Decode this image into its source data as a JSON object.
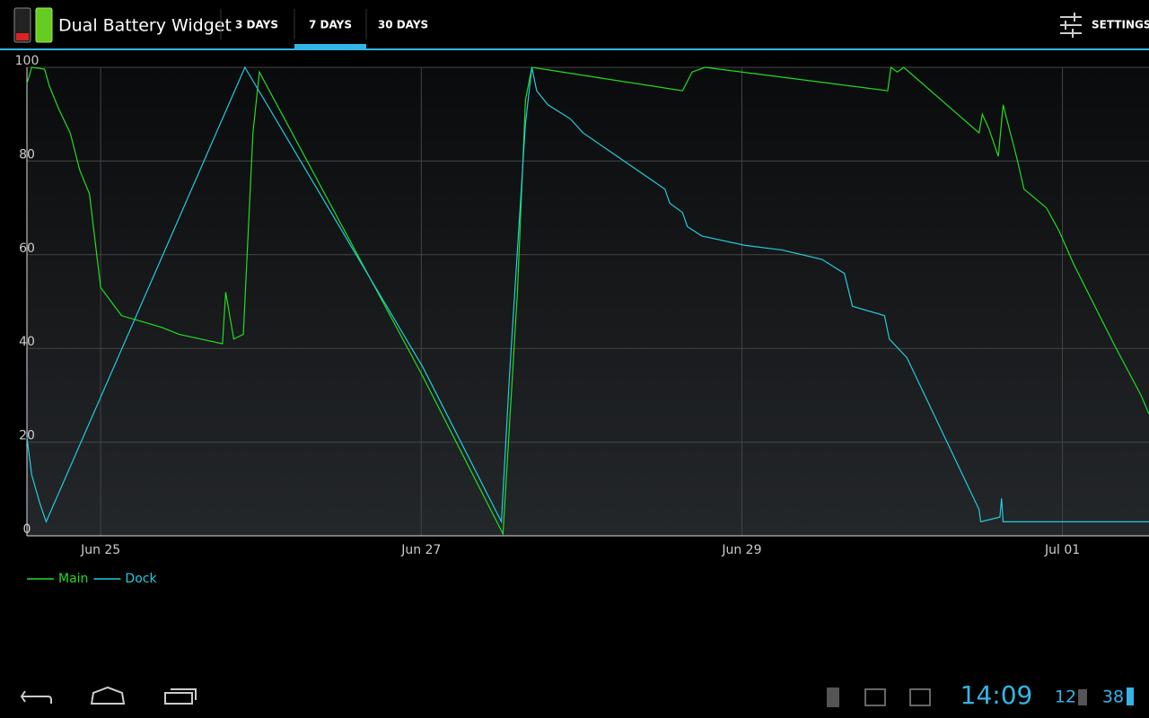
{
  "app_bar": {
    "title": "Dual Battery Widget",
    "tabs": [
      "3 DAYS",
      "7 DAYS",
      "30 DAYS"
    ],
    "action": "SETTINGS"
  },
  "chart_data": {
    "type": "line",
    "xlim": [
      24.54,
      31.54
    ],
    "xticks": [
      {
        "value": 25,
        "label": "Jun 25"
      },
      {
        "value": 27,
        "label": "Jun 27"
      },
      {
        "value": 29,
        "label": "Jun 29"
      },
      {
        "value": 31,
        "label": "Jul 01"
      }
    ],
    "ylim": [
      0,
      100
    ],
    "yticks": [
      0,
      20,
      40,
      60,
      80,
      100
    ],
    "grid": true,
    "series": [
      {
        "name": "Main",
        "color": "#22dd22",
        "x": [
          24.54,
          24.57,
          24.65,
          24.68,
          24.74,
          24.81,
          24.87,
          24.93,
          25,
          25.13,
          25.38,
          25.49,
          25.76,
          25.78,
          25.8,
          25.83,
          25.89,
          25.95,
          25.99,
          27.01,
          27.51,
          27.6,
          27.65,
          27.69,
          28.63,
          28.69,
          28.77,
          29.91,
          29.93,
          29.97,
          30.01,
          30.48,
          30.5,
          30.54,
          30.6,
          30.63,
          30.72,
          30.76,
          30.9,
          30.98,
          31.07,
          31.32,
          31.49,
          31.54
        ],
        "values": [
          96.5,
          100,
          99.6,
          96,
          91,
          86,
          78,
          73,
          53,
          47,
          44.5,
          43,
          41,
          52,
          48,
          42,
          43,
          86,
          99,
          34,
          0.4,
          52,
          93,
          100,
          95,
          99,
          100,
          95,
          100,
          99,
          100,
          86,
          90,
          87,
          81,
          92,
          80,
          74,
          70,
          65,
          58,
          41,
          30,
          26
        ]
      },
      {
        "name": "Dock",
        "color": "#22ccdd",
        "x": [
          24.54,
          24.57,
          24.62,
          24.66,
          25.9,
          27.01,
          27.5,
          27.55,
          27.65,
          27.69,
          27.72,
          27.79,
          27.93,
          28.01,
          28.18,
          28.35,
          28.52,
          28.55,
          28.63,
          28.66,
          28.75,
          29.02,
          29.25,
          29.5,
          29.64,
          29.69,
          29.89,
          29.92,
          30.03,
          30.48,
          30.49,
          30.61,
          30.62,
          30.63,
          31.54
        ],
        "values": [
          21,
          13,
          7,
          3,
          100,
          36,
          3,
          34,
          88,
          100,
          95,
          92,
          89,
          86,
          82,
          78,
          74,
          71,
          69,
          66,
          64,
          62,
          61,
          59,
          56,
          49,
          47,
          42,
          38,
          5.6,
          3,
          4,
          8,
          3,
          3
        ]
      }
    ]
  },
  "status_bar": {
    "time": "14:09",
    "keyboard_battery": "12",
    "battery": "38"
  }
}
